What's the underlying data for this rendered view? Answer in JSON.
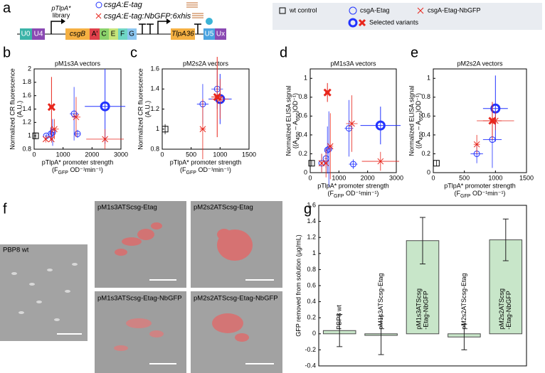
{
  "panel_letters": [
    "a",
    "b",
    "c",
    "d",
    "e",
    "f",
    "g"
  ],
  "diagram": {
    "promoter": "pTlpA*",
    "library": "library",
    "constructs": [
      "csgA:E-tag",
      "csgA:E-tag:NbGFP:6xhis"
    ],
    "parts": [
      "U0",
      "U4",
      "csgB",
      "A'",
      "C",
      "E",
      "F",
      "G",
      "TlpA36",
      "U5",
      "Ux"
    ]
  },
  "legend": {
    "items": [
      "wt control",
      "csgA-Etag",
      "csgA-Etag-NbGFP",
      "Selected variants"
    ]
  },
  "micrographs": [
    {
      "caption": "PBP8 wt"
    },
    {
      "caption": "pM1s3ATScsg-Etag"
    },
    {
      "caption": "pM2s2ATScsg-Etag"
    },
    {
      "caption": "pM1s3ATScsg-Etag-NbGFP"
    },
    {
      "caption": "pM2s2ATScsg-Etag-NbGFP"
    }
  ],
  "chart_data": [
    {
      "type": "scatter",
      "title": "pM1s3A vectors",
      "ylabel": [
        "Normalized CR fluorescence",
        "(A.U.)"
      ],
      "xlabel": [
        "pTlpA* promoter strength",
        [
          "(F",
          "GFP",
          " OD⁻¹min⁻¹)"
        ]
      ],
      "xlim": [
        0,
        3000
      ],
      "xticks": [
        0,
        1000,
        2000,
        3000
      ],
      "ylim": [
        0.8,
        2
      ],
      "yticks": [
        0.8,
        1,
        1.2,
        1.4,
        1.6,
        1.8,
        2
      ],
      "series": [
        {
          "marker": "square",
          "color": "#000000",
          "x": [
            50
          ],
          "values": [
            1.0
          ],
          "xerr": [
            0
          ],
          "yerr": [
            0.05
          ]
        },
        {
          "marker": "circle",
          "color": "#2233ff",
          "x": [
            420,
            580,
            640,
            1380,
            1500,
            2450
          ],
          "values": [
            1.0,
            1.03,
            1.05,
            1.33,
            1.03,
            1.44
          ],
          "xerr": [
            50,
            60,
            80,
            150,
            100,
            700
          ],
          "yerr": [
            0.03,
            0.1,
            0.2,
            0.4,
            0.06,
            0.56
          ],
          "selected": 5
        },
        {
          "marker": "cross",
          "color": "#e8261c",
          "x": [
            400,
            600,
            600,
            700,
            1450,
            2450
          ],
          "values": [
            0.95,
            0.95,
            1.43,
            1.1,
            1.28,
            0.95
          ],
          "xerr": [
            30,
            50,
            80,
            150,
            150,
            650
          ],
          "yerr": [
            0.05,
            0.05,
            0.45,
            0.15,
            0.3,
            0.15
          ],
          "selected": 2
        }
      ]
    },
    {
      "type": "scatter",
      "title": "pM2s2A vectors",
      "ylabel": [
        "Normalized CR fluorescence",
        "(A.U.)"
      ],
      "xlabel": [
        "pTlpA* promoter strength",
        [
          "(F",
          "GFP",
          " OD⁻¹min⁻¹)"
        ]
      ],
      "xlim": [
        0,
        1500
      ],
      "xticks": [
        0,
        500,
        1000,
        1500
      ],
      "ylim": [
        0.8,
        1.6
      ],
      "yticks": [
        0.8,
        1,
        1.2,
        1.4,
        1.6
      ],
      "series": [
        {
          "marker": "square",
          "color": "#000000",
          "x": [
            50
          ],
          "values": [
            1.0
          ],
          "xerr": [
            0
          ],
          "yerr": [
            0.05
          ]
        },
        {
          "marker": "circle",
          "color": "#2233ff",
          "x": [
            700,
            950,
            1000
          ],
          "values": [
            1.25,
            1.4,
            1.3
          ],
          "xerr": [
            100,
            100,
            200
          ],
          "yerr": [
            0.2,
            0.2,
            0.25
          ],
          "selected": 2
        },
        {
          "marker": "cross",
          "color": "#e8261c",
          "x": [
            700,
            950,
            1000
          ],
          "values": [
            1.0,
            1.32,
            1.3
          ],
          "xerr": [
            50,
            100,
            150
          ],
          "yerr": [
            0.3,
            0.4,
            0.2
          ],
          "selected": 1
        }
      ]
    },
    {
      "type": "scatter",
      "title": "pM1s3A vectors",
      "ylabel": [
        "Normalized ELISA signal",
        [
          "((A",
          "450",
          " – A",
          "650",
          ")OD⁻¹)"
        ]
      ],
      "xlabel": [
        "pTlpA* promoter strength",
        [
          "(F",
          "GFP",
          " OD⁻¹min⁻¹)"
        ]
      ],
      "xlim": [
        0,
        3000
      ],
      "xticks": [
        0,
        1000,
        2000,
        3000
      ],
      "ylim": [
        0,
        1.1
      ],
      "yticks": [
        0,
        0.2,
        0.4,
        0.6,
        0.8,
        1
      ],
      "series": [
        {
          "marker": "square",
          "color": "#000000",
          "x": [
            50
          ],
          "values": [
            0.1
          ],
          "xerr": [
            0
          ],
          "yerr": [
            0.03
          ]
        },
        {
          "marker": "circle",
          "color": "#2233ff",
          "x": [
            400,
            550,
            600,
            650,
            1350,
            1500,
            2450
          ],
          "values": [
            0.1,
            0.15,
            0.24,
            0.25,
            0.47,
            0.09,
            0.5
          ],
          "xerr": [
            30,
            50,
            80,
            100,
            150,
            150,
            700
          ],
          "yerr": [
            0.1,
            0.1,
            0.25,
            0.4,
            0.3,
            0.05,
            0.2
          ],
          "selected": 6
        },
        {
          "marker": "cross",
          "color": "#e8261c",
          "x": [
            400,
            550,
            600,
            700,
            1450,
            2450
          ],
          "values": [
            0.1,
            0.1,
            0.85,
            0.28,
            0.52,
            0.12
          ],
          "xerr": [
            30,
            50,
            80,
            100,
            200,
            650
          ],
          "yerr": [
            0.1,
            0.15,
            0.1,
            0.35,
            0.3,
            0.1
          ],
          "selected": 2
        }
      ]
    },
    {
      "type": "scatter",
      "title": "pM2s2A vectors",
      "ylabel": [
        "Normalized ELISA signal",
        [
          "((A",
          "450",
          " – A",
          "650",
          ")OD⁻¹)"
        ]
      ],
      "xlabel": [
        "pTlpA* promoter strength",
        [
          "(F",
          "GFP",
          " OD⁻¹min⁻¹)"
        ]
      ],
      "xlim": [
        0,
        1500
      ],
      "xticks": [
        0,
        500,
        1000,
        1500
      ],
      "ylim": [
        0,
        1.1
      ],
      "yticks": [
        0,
        0.2,
        0.4,
        0.6,
        0.8,
        1
      ],
      "series": [
        {
          "marker": "square",
          "color": "#000000",
          "x": [
            50
          ],
          "values": [
            0.1
          ],
          "xerr": [
            0
          ],
          "yerr": [
            0.03
          ]
        },
        {
          "marker": "circle",
          "color": "#2233ff",
          "x": [
            700,
            950,
            1000
          ],
          "values": [
            0.2,
            0.35,
            0.68
          ],
          "xerr": [
            100,
            150,
            200
          ],
          "yerr": [
            0.1,
            0.3,
            0.35
          ],
          "selected": 2
        },
        {
          "marker": "cross",
          "color": "#e8261c",
          "x": [
            700,
            950,
            1000
          ],
          "values": [
            0.3,
            0.55,
            0.55
          ],
          "xerr": [
            50,
            150,
            300
          ],
          "yerr": [
            0.1,
            0.2,
            0.1
          ],
          "selected": 1
        }
      ]
    },
    {
      "type": "bar",
      "ylabel": "GFP removed from solution (µg/mL)",
      "categories": [
        [
          "PBP8 wt"
        ],
        [
          "pM1s3ATScsg-Etag"
        ],
        [
          "pM1s3ATScsg",
          "-Etag-NbGFP"
        ],
        [
          "pM2s2ATScsg-Etag"
        ],
        [
          "pM2s2ATScsg",
          "-Etag-NbGFP"
        ]
      ],
      "values": [
        0.04,
        -0.02,
        1.16,
        -0.04,
        1.17
      ],
      "errors": [
        0.2,
        0.24,
        0.29,
        0.16,
        0.26
      ],
      "color": "#c8e6c9",
      "ylim": [
        -0.4,
        1.6
      ],
      "yticks": [
        -0.4,
        -0.2,
        0,
        0.2,
        0.4,
        0.6,
        0.8,
        1,
        1.2,
        1.4,
        1.6
      ]
    }
  ]
}
